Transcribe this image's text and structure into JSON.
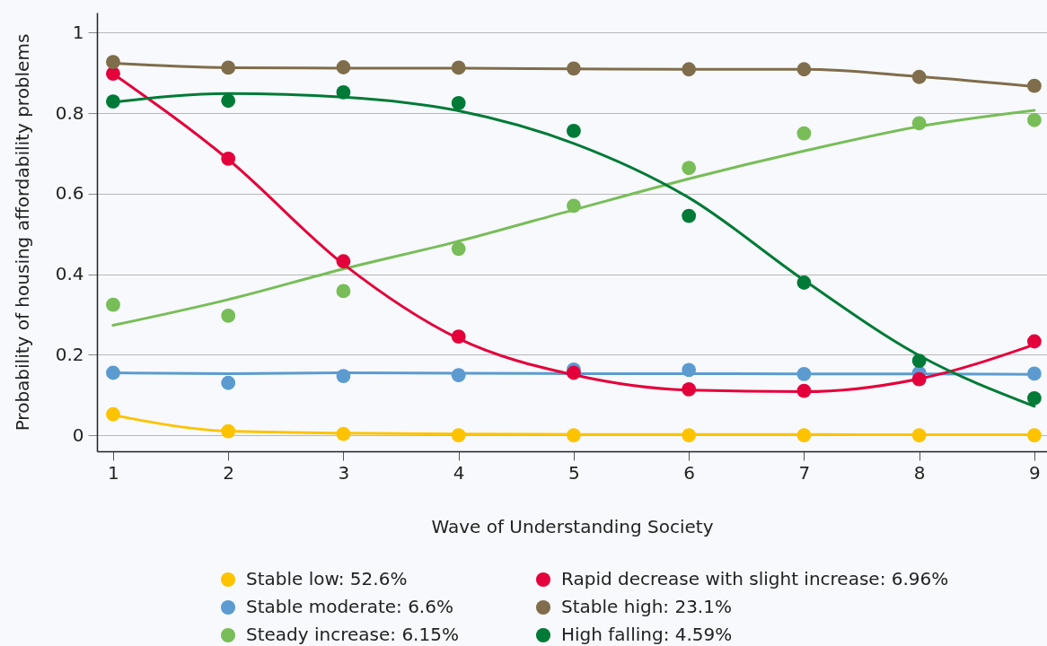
{
  "chart_data": {
    "type": "scatter",
    "xlabel": "Wave of Understanding Society",
    "ylabel": "Probability of housing affordability problems",
    "x": [
      1,
      2,
      3,
      4,
      5,
      6,
      7,
      8,
      9
    ],
    "xlim": [
      0.86,
      9.11
    ],
    "xticks": [
      1,
      2,
      3,
      4,
      5,
      6,
      7,
      8,
      9
    ],
    "ylim": [
      -0.04,
      1.05
    ],
    "yticks": [
      0,
      0.2,
      0.4,
      0.6,
      0.8,
      1
    ],
    "grid": "y",
    "legend": "bottom",
    "series": [
      {
        "type": "line",
        "color": "#fdc300",
        "line_style": "solid",
        "values": [
          0.05,
          0.01,
          0.005,
          0.003,
          0.002,
          0.002,
          0.002,
          0.001,
          0.001
        ]
      },
      {
        "type": "line",
        "color": "#5b9bd0",
        "line_style": "solid",
        "values": [
          0.155,
          0.153,
          0.155,
          0.154,
          0.153,
          0.153,
          0.152,
          0.152,
          0.151
        ]
      },
      {
        "type": "line",
        "color": "#78bd58",
        "line_style": "solid",
        "values": [
          0.273,
          0.337,
          0.413,
          0.482,
          0.56,
          0.637,
          0.706,
          0.767,
          0.807
        ]
      },
      {
        "type": "line",
        "color": "#e4003b",
        "line_style": "solid",
        "values": [
          0.898,
          0.685,
          0.425,
          0.24,
          0.15,
          0.112,
          0.108,
          0.14,
          0.225
        ]
      },
      {
        "type": "line",
        "color": "#7f6d4b",
        "line_style": "solid",
        "values": [
          0.924,
          0.913,
          0.912,
          0.912,
          0.91,
          0.909,
          0.909,
          0.891,
          0.866
        ]
      },
      {
        "type": "line",
        "color": "#007a37",
        "line_style": "solid",
        "values": [
          0.827,
          0.849,
          0.84,
          0.806,
          0.725,
          0.59,
          0.385,
          0.198,
          0.072
        ]
      },
      {
        "name": "Stable low: 52.6%",
        "color": "#fdc300",
        "marker": "circle",
        "values": [
          0.052,
          0.01,
          0.003,
          0,
          0,
          0,
          0,
          0,
          0
        ]
      },
      {
        "name": "Stable moderate: 6.6%",
        "color": "#5b9bd0",
        "marker": "circle",
        "values": [
          0.155,
          0.13,
          0.147,
          0.149,
          0.163,
          0.162,
          0.152,
          0.155,
          0.153
        ]
      },
      {
        "name": "Steady increase: 6.15%",
        "color": "#78bd58",
        "marker": "circle",
        "values": [
          0.324,
          0.297,
          0.358,
          0.463,
          0.57,
          0.664,
          0.75,
          0.775,
          0.783
        ]
      },
      {
        "name": "Rapid decrease with slight increase: 6.96%",
        "color": "#e4003b",
        "marker": "circle",
        "values": [
          0.898,
          0.687,
          0.432,
          0.245,
          0.155,
          0.114,
          0.11,
          0.139,
          0.233
        ]
      },
      {
        "name": "Stable high: 23.1%",
        "color": "#7f6d4b",
        "marker": "circle",
        "values": [
          0.927,
          0.913,
          0.914,
          0.913,
          0.911,
          0.909,
          0.909,
          0.89,
          0.868
        ]
      },
      {
        "name": "High falling: 4.59%",
        "color": "#007a37",
        "marker": "circle",
        "values": [
          0.829,
          0.831,
          0.852,
          0.825,
          0.756,
          0.545,
          0.379,
          0.185,
          0.092
        ]
      }
    ]
  }
}
